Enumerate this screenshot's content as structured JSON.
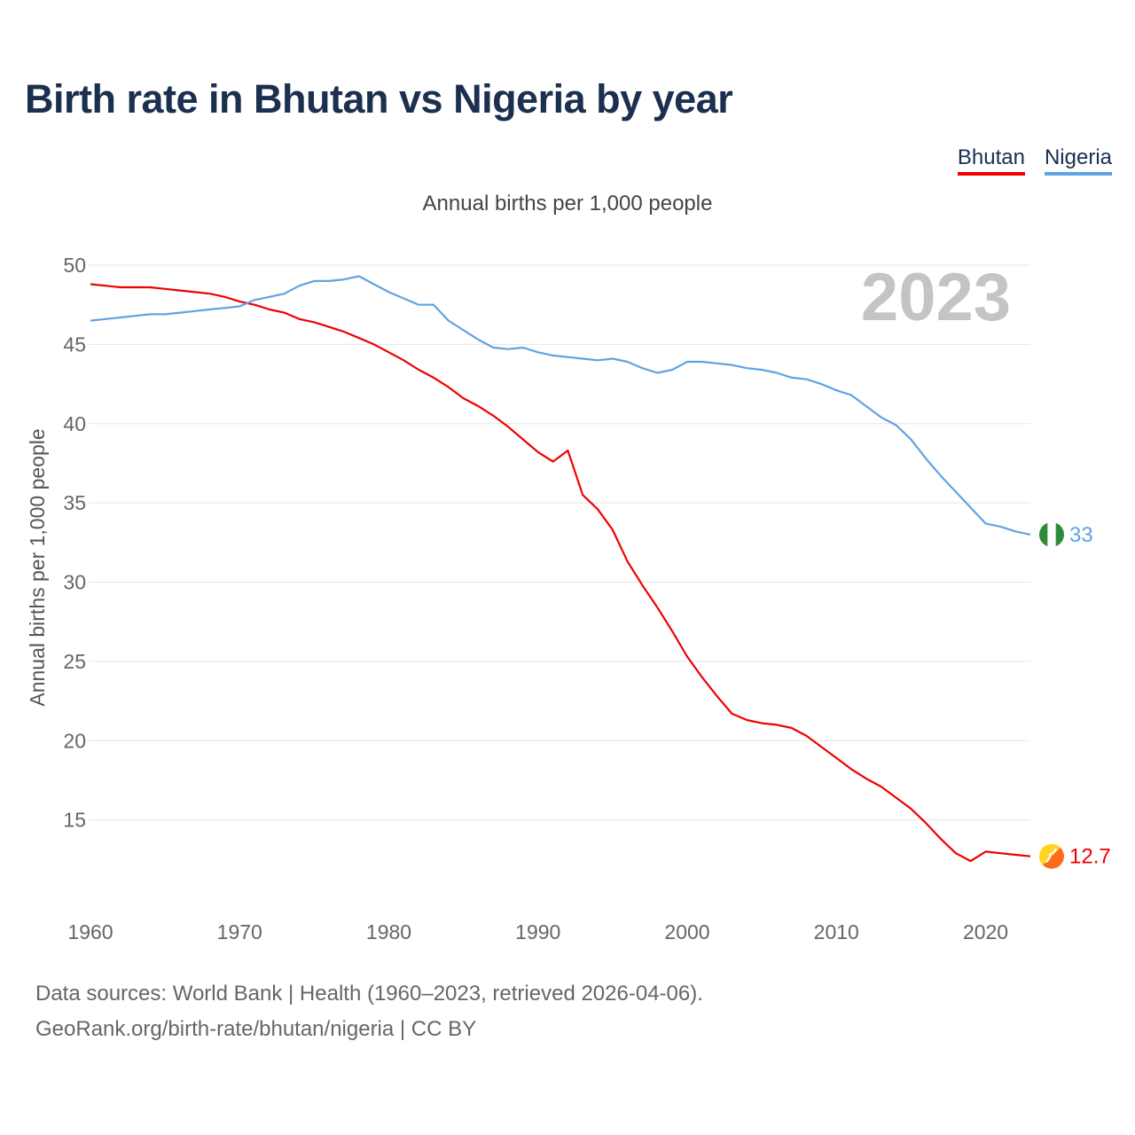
{
  "title": "Birth rate in Bhutan vs Nigeria by year",
  "subtitle": "Annual births per 1,000 people",
  "legend": [
    {
      "label": "Bhutan",
      "color": "#ee0000"
    },
    {
      "label": "Nigeria",
      "color": "#5fa3e3"
    }
  ],
  "source": {
    "line1": "Data sources: World Bank | Health (1960–2023, retrieved 2026-04-06).",
    "line2": "GeoRank.org/birth-rate/bhutan/nigeria | CC BY"
  },
  "chart_data": {
    "type": "line",
    "title": "Birth rate in Bhutan vs Nigeria by year",
    "subtitle": "Annual births per 1,000 people",
    "xlabel": "",
    "ylabel": "Annual births per 1,000 people",
    "xlim": [
      1960,
      2023
    ],
    "ylim": [
      10,
      50
    ],
    "x_ticks": [
      1960,
      1970,
      1980,
      1990,
      2000,
      2010,
      2020
    ],
    "y_ticks": [
      15,
      20,
      25,
      30,
      35,
      40,
      45,
      50
    ],
    "watermark_year": "2023",
    "x": [
      1960,
      1961,
      1962,
      1963,
      1964,
      1965,
      1966,
      1967,
      1968,
      1969,
      1970,
      1971,
      1972,
      1973,
      1974,
      1975,
      1976,
      1977,
      1978,
      1979,
      1980,
      1981,
      1982,
      1983,
      1984,
      1985,
      1986,
      1987,
      1988,
      1989,
      1990,
      1991,
      1992,
      1993,
      1994,
      1995,
      1996,
      1997,
      1998,
      1999,
      2000,
      2001,
      2002,
      2003,
      2004,
      2005,
      2006,
      2007,
      2008,
      2009,
      2010,
      2011,
      2012,
      2013,
      2014,
      2015,
      2016,
      2017,
      2018,
      2019,
      2020,
      2021,
      2022,
      2023
    ],
    "series": [
      {
        "name": "Bhutan",
        "color": "#ee0000",
        "end_label": "12.7",
        "values": [
          48.8,
          48.7,
          48.6,
          48.6,
          48.6,
          48.5,
          48.4,
          48.3,
          48.2,
          48.0,
          47.7,
          47.5,
          47.2,
          47.0,
          46.6,
          46.4,
          46.1,
          45.8,
          45.4,
          45.0,
          44.5,
          44.0,
          43.4,
          42.9,
          42.3,
          41.6,
          41.1,
          40.5,
          39.8,
          39.0,
          38.2,
          37.6,
          38.3,
          35.5,
          34.6,
          33.3,
          31.3,
          29.8,
          28.4,
          26.9,
          25.3,
          24.0,
          22.8,
          21.7,
          21.3,
          21.1,
          21.0,
          20.8,
          20.3,
          19.6,
          18.9,
          18.2,
          17.6,
          17.1,
          16.4,
          15.7,
          14.8,
          13.8,
          12.9,
          12.4,
          13.0,
          12.9,
          12.8,
          12.7
        ]
      },
      {
        "name": "Nigeria",
        "color": "#5fa3e3",
        "end_label": "33",
        "values": [
          46.5,
          46.6,
          46.7,
          46.8,
          46.9,
          46.9,
          47.0,
          47.1,
          47.2,
          47.3,
          47.4,
          47.8,
          48.0,
          48.2,
          48.7,
          49.0,
          49.0,
          49.1,
          49.3,
          48.8,
          48.3,
          47.9,
          47.5,
          47.5,
          46.5,
          45.9,
          45.3,
          44.8,
          44.7,
          44.8,
          44.5,
          44.3,
          44.2,
          44.1,
          44.0,
          44.1,
          43.9,
          43.5,
          43.2,
          43.4,
          43.9,
          43.9,
          43.8,
          43.7,
          43.5,
          43.4,
          43.2,
          42.9,
          42.8,
          42.5,
          42.1,
          41.8,
          41.1,
          40.4,
          39.9,
          39.0,
          37.8,
          36.7,
          35.7,
          34.7,
          33.7,
          33.5,
          33.2,
          33.0
        ]
      }
    ]
  }
}
